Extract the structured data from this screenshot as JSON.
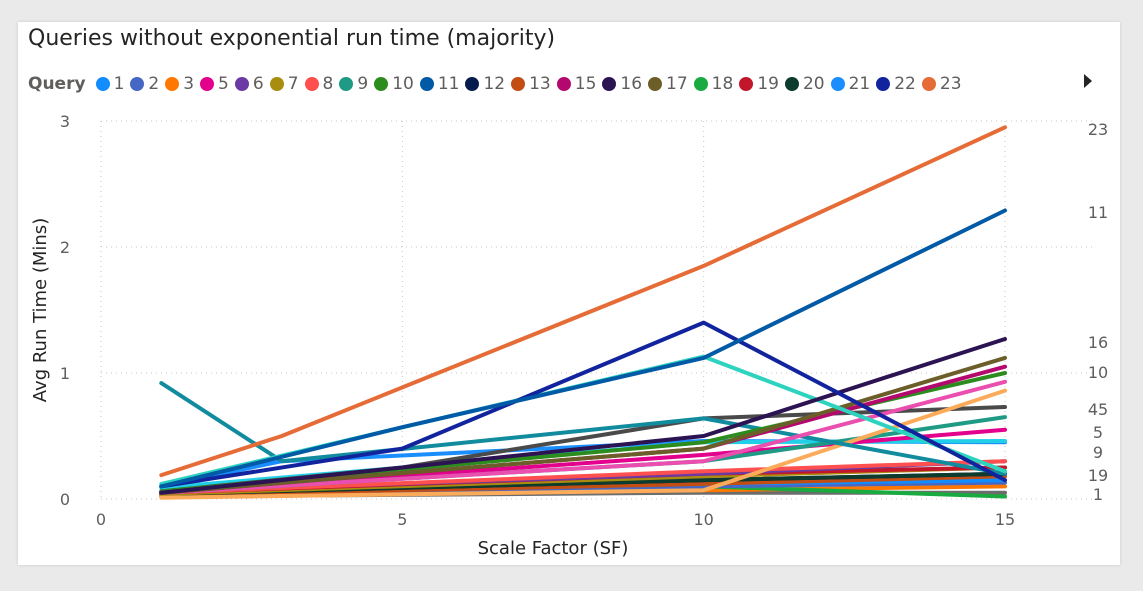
{
  "chart_data": {
    "type": "line",
    "title": "Queries without exponential run time (majority)",
    "legend_title": "Query",
    "legend_placement": "top",
    "xlabel": "Scale Factor (SF)",
    "ylabel": "Avg Run Time (Mins)",
    "xlim": [
      0,
      15
    ],
    "ylim": [
      0,
      3
    ],
    "x_ticks": [
      "0",
      "5",
      "10",
      "15"
    ],
    "y_ticks": [
      "0",
      "1",
      "2",
      "3"
    ],
    "grid": true,
    "end_labels": [
      "23",
      "11",
      "16",
      "10",
      "45",
      "5",
      "9",
      "19",
      "1"
    ],
    "series": [
      {
        "name": "1",
        "color": "#118dff",
        "x": [
          1,
          10,
          15
        ],
        "y": [
          0.05,
          0.12,
          0.15
        ]
      },
      {
        "name": "2",
        "color": "#4668c5",
        "x": [
          1,
          10,
          15
        ],
        "y": [
          0.04,
          0.1,
          0.13
        ]
      },
      {
        "name": "3",
        "color": "#ff7700",
        "x": [
          1,
          10,
          15
        ],
        "y": [
          0.03,
          0.07,
          0.1
        ]
      },
      {
        "name": "5",
        "color": "#e3008c",
        "x": [
          1,
          10,
          15
        ],
        "y": [
          0.05,
          0.35,
          0.55
        ]
      },
      {
        "name": "6",
        "color": "#6b3aa3",
        "x": [
          1,
          10,
          15
        ],
        "y": [
          0.06,
          0.2,
          0.3
        ]
      },
      {
        "name": "7",
        "color": "#a98d0f",
        "x": [
          1,
          10,
          15
        ],
        "y": [
          0.04,
          0.18,
          0.25
        ]
      },
      {
        "name": "8",
        "color": "#ff4f4f",
        "x": [
          1,
          10,
          15
        ],
        "y": [
          0.05,
          0.22,
          0.3
        ]
      },
      {
        "name": "9",
        "color": "#1f9a85",
        "x": [
          1,
          10,
          15
        ],
        "y": [
          0.05,
          0.3,
          0.65
        ]
      },
      {
        "name": "10",
        "color": "#2c8c1e",
        "x": [
          1,
          10,
          15
        ],
        "y": [
          0.06,
          0.45,
          1.0
        ]
      },
      {
        "name": "11",
        "color": "#005aa6",
        "x": [
          1,
          5,
          10,
          15
        ],
        "y": [
          0.1,
          0.57,
          1.12,
          2.29
        ]
      },
      {
        "name": "12",
        "color": "#061c4d",
        "x": [
          1,
          10,
          15
        ],
        "y": [
          0.04,
          0.15,
          0.2
        ]
      },
      {
        "name": "13",
        "color": "#c24e14",
        "x": [
          1,
          10,
          15
        ],
        "y": [
          0.03,
          0.12,
          0.18
        ]
      },
      {
        "name": "15",
        "color": "#b5086e",
        "x": [
          1,
          10,
          15
        ],
        "y": [
          0.05,
          0.4,
          1.05
        ]
      },
      {
        "name": "16",
        "color": "#2c1352",
        "x": [
          1,
          10,
          15
        ],
        "y": [
          0.05,
          0.5,
          1.27
        ]
      },
      {
        "name": "17",
        "color": "#6b5e28",
        "x": [
          1,
          10,
          15
        ],
        "y": [
          0.05,
          0.4,
          1.12
        ]
      },
      {
        "name": "18",
        "color": "#1aab40",
        "x": [
          1,
          10,
          15
        ],
        "y": [
          0.04,
          0.1,
          0.02
        ]
      },
      {
        "name": "19",
        "color": "#c2172a",
        "x": [
          1,
          10,
          15
        ],
        "y": [
          0.05,
          0.2,
          0.25
        ]
      },
      {
        "name": "20",
        "color": "#0d3b2e",
        "x": [
          1,
          10,
          15
        ],
        "y": [
          0.04,
          0.15,
          0.2
        ]
      },
      {
        "name": "21",
        "color": "#1a8eff",
        "x": [
          1,
          3,
          10,
          15
        ],
        "y": [
          0.1,
          0.3,
          0.46,
          0.45
        ]
      },
      {
        "name": "22",
        "color": "#12239e",
        "x": [
          1,
          5,
          10,
          15
        ],
        "y": [
          0.1,
          0.4,
          1.4,
          0.15
        ]
      },
      {
        "name": "23",
        "color": "#e66c37",
        "x": [
          1,
          3,
          10,
          15
        ],
        "y": [
          0.19,
          0.5,
          1.85,
          2.95
        ]
      },
      {
        "name": "",
        "color": "#118b9e",
        "x": [
          1,
          3,
          10,
          15
        ],
        "y": [
          0.92,
          0.3,
          0.64,
          0.2
        ]
      },
      {
        "name": "",
        "color": "#2ed3bf",
        "x": [
          1,
          10,
          15
        ],
        "y": [
          0.12,
          1.13,
          0.22
        ]
      },
      {
        "name": "",
        "color": "#4a4a4a",
        "x": [
          1,
          5,
          10,
          15
        ],
        "y": [
          0.06,
          0.25,
          0.64,
          0.73
        ]
      },
      {
        "name": "",
        "color": "#ea4faf",
        "x": [
          1,
          10,
          15
        ],
        "y": [
          0.05,
          0.3,
          0.93
        ]
      },
      {
        "name": "",
        "color": "#fcab5a",
        "x": [
          1,
          10,
          15
        ],
        "y": [
          0.01,
          0.07,
          0.86
        ]
      },
      {
        "name": "",
        "color": "#21cfe6",
        "x": [
          1,
          10,
          15
        ],
        "y": [
          0.09,
          0.45,
          0.46
        ]
      },
      {
        "name": "",
        "color": "#6c6c6c",
        "x": [
          1,
          10,
          15
        ],
        "y": [
          0.02,
          0.05,
          0.05
        ]
      }
    ]
  }
}
